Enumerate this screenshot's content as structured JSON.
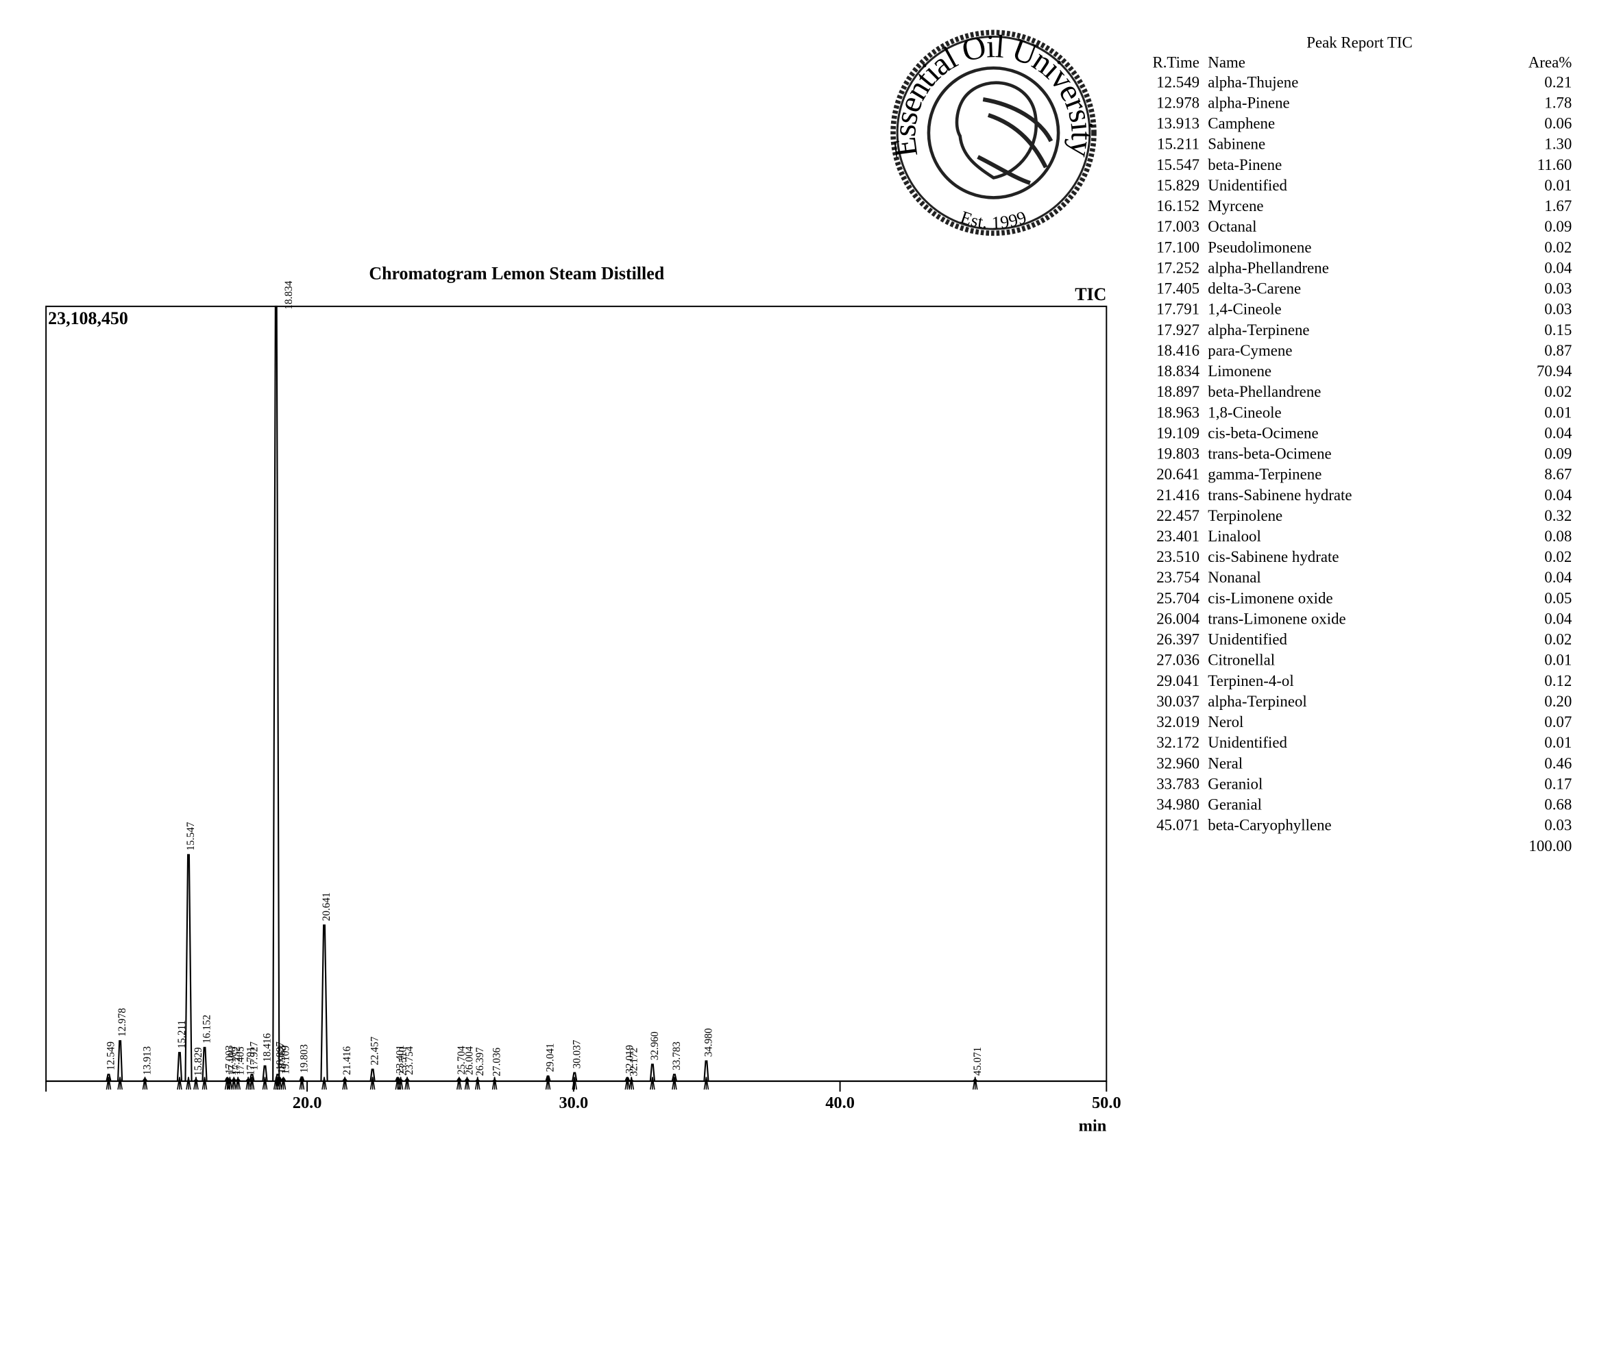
{
  "chart_data": {
    "type": "chromatogram",
    "title": "Chromatogram Lemon Steam Distilled",
    "series_name": "TIC",
    "x_label": "min",
    "x": [
      12.549,
      12.978,
      13.913,
      15.211,
      15.547,
      15.829,
      16.152,
      17.003,
      17.1,
      17.252,
      17.405,
      17.791,
      17.927,
      18.416,
      18.834,
      18.897,
      18.963,
      19.109,
      19.803,
      20.641,
      21.416,
      22.457,
      23.401,
      23.51,
      23.754,
      25.704,
      26.004,
      26.397,
      27.036,
      29.041,
      30.037,
      32.019,
      32.172,
      32.96,
      33.783,
      34.98,
      45.071
    ],
    "values": [
      200000,
      1200000,
      60000,
      850000,
      6750000,
      30000,
      1000000,
      90000,
      40000,
      60000,
      50000,
      50000,
      200000,
      450000,
      23108450,
      200000,
      100000,
      80000,
      120000,
      4650000,
      60000,
      350000,
      100000,
      40000,
      60000,
      70000,
      60000,
      30000,
      20000,
      150000,
      250000,
      100000,
      20000,
      500000,
      200000,
      600000,
      40000
    ],
    "peak_labels": [
      "12.549",
      "12.978",
      "13.913",
      "15.211",
      "15.547",
      "15.829",
      "16.152",
      "17.003",
      "17.100",
      "17.252",
      "17.405",
      "17.791",
      "17.927",
      "18.416",
      "18.834",
      "18.897",
      "18.963",
      "19.109",
      "19.803",
      "20.641",
      "21.416",
      "22.457",
      "23.401",
      "23.510",
      "23.754",
      "25.704",
      "26.004",
      "26.397",
      "27.036",
      "29.041",
      "30.037",
      "32.019",
      "32.172",
      "32.960",
      "33.783",
      "34.980",
      "45.071"
    ],
    "color": "#000000",
    "xlim": [
      10.2,
      50
    ],
    "xticks": [
      {
        "value": 20,
        "label": "20.0"
      },
      {
        "value": 30,
        "label": "30.0"
      },
      {
        "value": 40,
        "label": "40.0"
      },
      {
        "value": 50,
        "label": "50.0"
      }
    ],
    "ylim": [
      0,
      23108450
    ],
    "yticks": [
      {
        "value": 23108450,
        "label": "23,108,450"
      }
    ]
  },
  "peak_report": {
    "title": "Peak Report TIC",
    "headers": [
      "R.Time",
      "Name",
      "Area%"
    ],
    "rows": [
      [
        "12.549",
        "alpha-Thujene",
        "0.21"
      ],
      [
        "12.978",
        "alpha-Pinene",
        "1.78"
      ],
      [
        "13.913",
        "Camphene",
        "0.06"
      ],
      [
        "15.211",
        "Sabinene",
        "1.30"
      ],
      [
        "15.547",
        "beta-Pinene",
        "11.60"
      ],
      [
        "15.829",
        "Unidentified",
        "0.01"
      ],
      [
        "16.152",
        "Myrcene",
        "1.67"
      ],
      [
        "17.003",
        "Octanal",
        "0.09"
      ],
      [
        "17.100",
        "Pseudolimonene",
        "0.02"
      ],
      [
        "17.252",
        "alpha-Phellandrene",
        "0.04"
      ],
      [
        "17.405",
        "delta-3-Carene",
        "0.03"
      ],
      [
        "17.791",
        "1,4-Cineole",
        "0.03"
      ],
      [
        "17.927",
        "alpha-Terpinene",
        "0.15"
      ],
      [
        "18.416",
        "para-Cymene",
        "0.87"
      ],
      [
        "18.834",
        "Limonene",
        "70.94"
      ],
      [
        "18.897",
        "beta-Phellandrene",
        "0.02"
      ],
      [
        "18.963",
        "1,8-Cineole",
        "0.01"
      ],
      [
        "19.109",
        "cis-beta-Ocimene",
        "0.04"
      ],
      [
        "19.803",
        "trans-beta-Ocimene",
        "0.09"
      ],
      [
        "20.641",
        "gamma-Terpinene",
        "8.67"
      ],
      [
        "21.416",
        "trans-Sabinene hydrate",
        "0.04"
      ],
      [
        "22.457",
        "Terpinolene",
        "0.32"
      ],
      [
        "23.401",
        "Linalool",
        "0.08"
      ],
      [
        "23.510",
        "cis-Sabinene hydrate",
        "0.02"
      ],
      [
        "23.754",
        "Nonanal",
        "0.04"
      ],
      [
        "25.704",
        "cis-Limonene oxide",
        "0.05"
      ],
      [
        "26.004",
        "trans-Limonene oxide",
        "0.04"
      ],
      [
        "26.397",
        "Unidentified",
        "0.02"
      ],
      [
        "27.036",
        "Citronellal",
        "0.01"
      ],
      [
        "29.041",
        "Terpinen-4-ol",
        "0.12"
      ],
      [
        "30.037",
        "alpha-Terpineol",
        "0.20"
      ],
      [
        "32.019",
        "Nerol",
        "0.07"
      ],
      [
        "32.172",
        "Unidentified",
        "0.01"
      ],
      [
        "32.960",
        "Neral",
        "0.46"
      ],
      [
        "33.783",
        "Geraniol",
        "0.17"
      ],
      [
        "34.980",
        "Geranial",
        "0.68"
      ],
      [
        "45.071",
        "beta-Caryophyllene",
        "0.03"
      ]
    ],
    "total": "100.00"
  },
  "logo": {
    "name": "Essential Oil University",
    "established": "Est. 1999"
  }
}
